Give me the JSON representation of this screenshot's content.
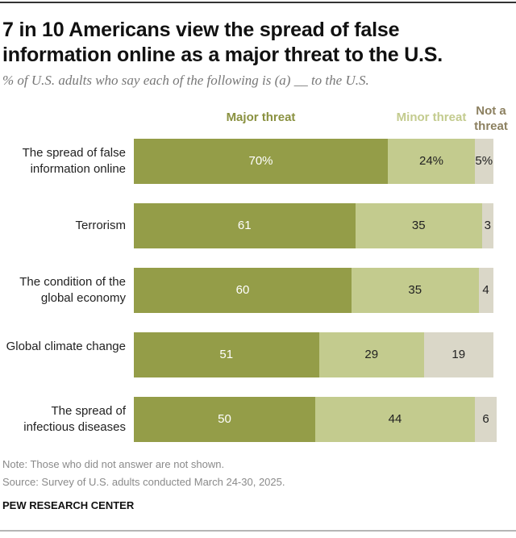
{
  "title": "7 in 10 Americans view the spread of false information online as a major threat to the U.S.",
  "subtitle": "% of U.S. adults who say each of the following is (a) __ to the U.S.",
  "chart_data": {
    "type": "bar",
    "orientation": "horizontal-stacked",
    "categories": [
      "The spread of false information online",
      "Terrorism",
      "The condition of the global economy",
      "Global climate change",
      "The spread of infectious diseases"
    ],
    "series": [
      {
        "name": "Major threat",
        "values": [
          70,
          61,
          60,
          51,
          50
        ],
        "labels": [
          "70%",
          "61",
          "60",
          "51",
          "50"
        ],
        "color": "#949d48",
        "label_color": "#8a9140"
      },
      {
        "name": "Minor threat",
        "values": [
          24,
          35,
          35,
          29,
          44
        ],
        "labels": [
          "24%",
          "35",
          "35",
          "29",
          "44"
        ],
        "color": "#c3cb8e",
        "label_color": "#c3cb8e"
      },
      {
        "name": "Not a threat",
        "values": [
          5,
          3,
          4,
          19,
          6
        ],
        "labels": [
          "5%",
          "3",
          "4",
          "19",
          "6"
        ],
        "color": "#dad7c8",
        "label_color": "#8c8060"
      }
    ],
    "xlim": [
      0,
      100
    ],
    "legend": "top"
  },
  "note": "Note: Those who did not answer are not shown.",
  "source": "Source: Survey of U.S. adults conducted March 24-30, 2025.",
  "brand": "PEW RESEARCH CENTER"
}
